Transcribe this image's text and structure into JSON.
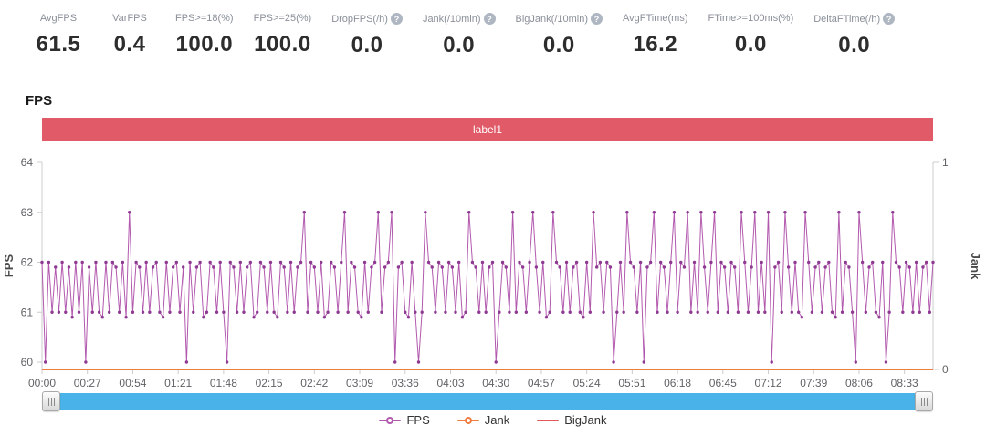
{
  "metrics": [
    {
      "label": "AvgFPS",
      "value": "61.5",
      "help": false
    },
    {
      "label": "VarFPS",
      "value": "0.4",
      "help": false
    },
    {
      "label": "FPS>=18(%)",
      "value": "100.0",
      "help": false
    },
    {
      "label": "FPS>=25(%)",
      "value": "100.0",
      "help": false
    },
    {
      "label": "DropFPS(/h)",
      "value": "0.0",
      "help": true
    },
    {
      "label": "Jank(/10min)",
      "value": "0.0",
      "help": true
    },
    {
      "label": "BigJank(/10min)",
      "value": "0.0",
      "help": true
    },
    {
      "label": "AvgFTime(ms)",
      "value": "16.2",
      "help": false
    },
    {
      "label": "FTime>=100ms(%)",
      "value": "0.0",
      "help": false
    },
    {
      "label": "DeltaFTime(/h)",
      "value": "0.0",
      "help": true
    }
  ],
  "section_title": "FPS",
  "banner": {
    "label": "label1",
    "color": "#e05a68"
  },
  "help_icon_glyph": "?",
  "colors": {
    "fps_line": "#b259ae",
    "fps_marker": "#8e3a92",
    "jank_line": "#ef7d40",
    "bigjank_line": "#e05858",
    "axis_line": "#cccccc",
    "tick_text": "#606266",
    "axis_name": "#4a4a4a",
    "scrollbar": "#49b2e8"
  },
  "chart_data": {
    "type": "line",
    "title": "FPS",
    "x_tick_labels": [
      "00:00",
      "00:27",
      "00:54",
      "01:21",
      "01:48",
      "02:15",
      "02:42",
      "03:09",
      "03:36",
      "04:03",
      "04:30",
      "04:57",
      "05:24",
      "05:51",
      "06:18",
      "06:45",
      "07:12",
      "07:39",
      "08:06",
      "08:33"
    ],
    "x_tick_seconds": [
      0,
      27,
      54,
      81,
      108,
      135,
      162,
      189,
      216,
      243,
      270,
      297,
      324,
      351,
      378,
      405,
      432,
      459,
      486,
      513
    ],
    "x_total_seconds": 530,
    "sample_interval_seconds": 2,
    "left_axis": {
      "label": "FPS",
      "ticks": [
        60,
        61,
        62,
        63,
        64
      ],
      "min": 60,
      "max": 64
    },
    "right_axis": {
      "label": "Jank",
      "ticks": [
        0,
        1
      ],
      "min": 0,
      "max": 1
    },
    "grid": false,
    "legend_position": "bottom",
    "series": [
      {
        "name": "FPS",
        "axis": "left",
        "values": [
          62,
          60,
          62,
          61,
          61.9,
          61,
          62,
          61,
          61.9,
          60.9,
          62,
          61,
          62,
          60,
          61.9,
          61,
          62,
          61,
          60.9,
          62,
          61,
          62,
          61.9,
          61,
          62,
          60.9,
          63,
          61,
          62,
          61.9,
          61,
          62,
          61,
          61.9,
          62,
          61,
          60.9,
          62,
          61,
          61.9,
          62,
          61,
          61.9,
          60,
          62,
          61,
          61.9,
          62,
          60.9,
          61,
          62,
          61.9,
          61,
          62,
          61,
          60,
          62,
          61.9,
          61,
          62,
          61,
          61.9,
          62,
          60.9,
          61,
          62,
          61.9,
          61,
          62,
          61,
          60.9,
          62,
          61.9,
          61,
          62,
          61,
          61.9,
          62,
          63,
          61,
          62,
          61.9,
          61,
          62,
          60.9,
          61,
          62,
          61.9,
          61,
          62,
          63,
          61,
          62,
          61.9,
          61,
          60.9,
          62,
          61,
          61.9,
          62,
          63,
          61,
          61.9,
          62,
          63,
          60,
          61.9,
          62,
          61,
          60.9,
          62,
          61,
          60,
          61,
          63,
          62,
          61.9,
          61,
          62,
          61.9,
          61,
          62,
          61.9,
          61,
          62,
          60.9,
          61,
          63,
          62,
          61.9,
          61,
          62,
          61,
          61.9,
          62,
          60,
          61,
          62,
          61.9,
          61,
          63,
          61,
          62,
          61.9,
          61,
          62,
          63,
          61.9,
          61,
          62,
          60.9,
          61,
          63,
          62,
          61.9,
          61,
          62,
          61,
          61.9,
          62,
          61,
          60.9,
          62,
          61,
          63,
          61.9,
          62,
          61,
          62,
          61.9,
          60,
          61,
          62,
          61,
          63,
          62,
          61.9,
          61,
          62,
          60,
          61.9,
          62,
          63,
          61,
          62,
          61.9,
          61,
          62,
          63,
          61,
          62,
          61.9,
          63,
          61,
          62,
          61,
          63,
          61.9,
          61,
          62,
          63,
          61,
          62,
          61.9,
          61,
          62,
          61.9,
          61,
          63,
          62,
          61,
          61.9,
          63,
          61,
          62,
          61,
          63,
          60,
          61.9,
          62,
          61,
          63,
          61.9,
          61,
          62,
          61,
          60.9,
          63,
          62,
          61,
          61.9,
          62,
          61,
          61.9,
          62,
          61,
          60.9,
          63,
          61,
          62,
          61.9,
          61,
          60,
          63,
          62,
          61,
          61.9,
          62,
          61,
          60.9,
          62,
          60,
          61,
          63,
          62,
          61.9,
          61,
          62,
          61.9,
          61,
          62,
          61,
          61.9,
          62,
          61,
          62
        ]
      },
      {
        "name": "Jank",
        "axis": "right",
        "constant_value": 0
      },
      {
        "name": "BigJank",
        "axis": "right",
        "constant_value": 0
      }
    ]
  },
  "legend_items": [
    {
      "label": "FPS",
      "marker": "circle-line"
    },
    {
      "label": "Jank",
      "marker": "circle-line"
    },
    {
      "label": "BigJank",
      "marker": "line"
    }
  ],
  "scrollbar": {
    "left_handle": "drag-handle",
    "right_handle": "drag-handle"
  }
}
